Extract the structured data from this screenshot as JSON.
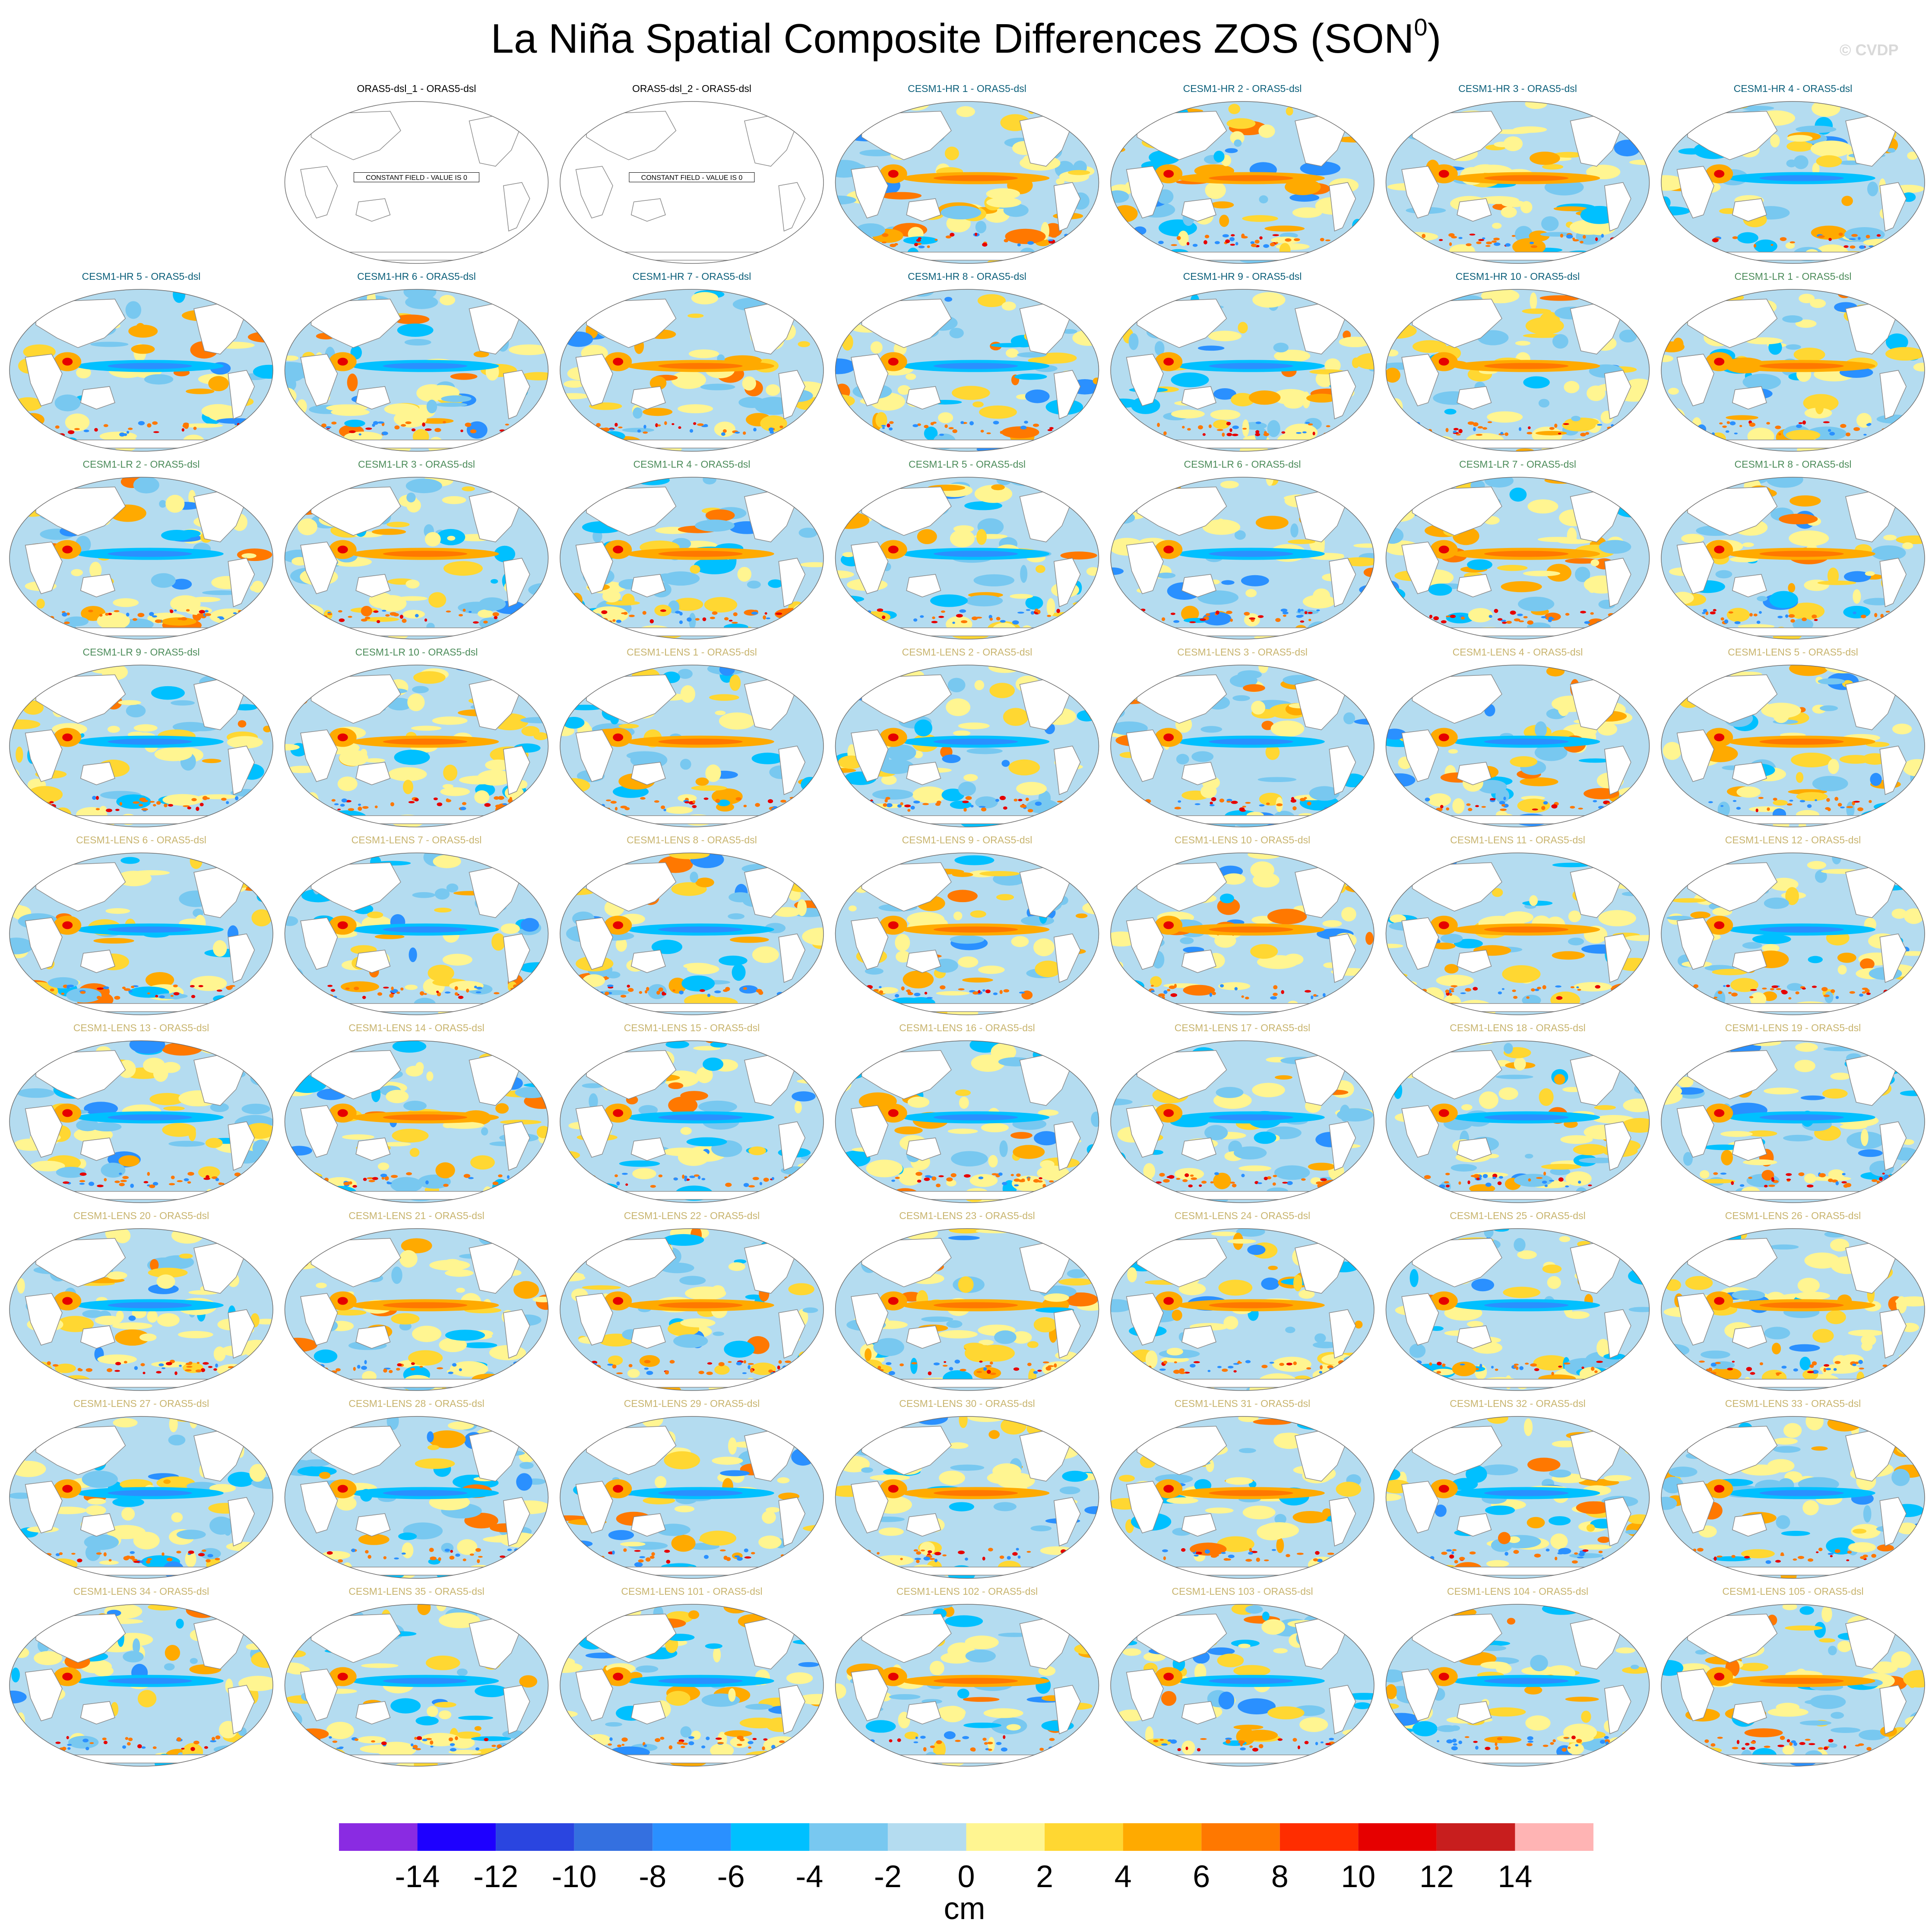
{
  "title": {
    "main": "La Niña Spatial Composite Differences ZOS (SON",
    "superscript": "0",
    "close": ")"
  },
  "watermark": "© CVDP",
  "chart_data": {
    "type": "heatmap",
    "variable": "ZOS",
    "season": "SON",
    "units": "cm",
    "colorbar": {
      "levels": [
        -14,
        -12,
        -10,
        -8,
        -6,
        -4,
        -2,
        0,
        2,
        4,
        6,
        8,
        10,
        12,
        14
      ],
      "tick_labels": [
        "-14",
        "-12",
        "-10",
        "-8",
        "-6",
        "-4",
        "-2",
        "0",
        "2",
        "4",
        "6",
        "8",
        "10",
        "12",
        "14"
      ],
      "colors": [
        "#8a2be2",
        "#1e00ff",
        "#2a45e0",
        "#3470e0",
        "#2a90ff",
        "#00c0ff",
        "#78c8f0",
        "#b4dcf0",
        "#fff591",
        "#ffd732",
        "#ffaa00",
        "#ff7800",
        "#ff2d00",
        "#e60000",
        "#c81e1e",
        "#ffb4b4"
      ],
      "units_label": "cm"
    },
    "panel_groups": [
      {
        "group": "ORAS5-dsl",
        "title_color": "#000000"
      },
      {
        "group": "CESM1-HR",
        "title_color": "#0b5f7a"
      },
      {
        "group": "CESM1-LR",
        "title_color": "#4c8c5a"
      },
      {
        "group": "CESM1-LENS",
        "title_color": "#c8b46e"
      }
    ],
    "panels": [
      {
        "title": "",
        "empty": true
      },
      {
        "title": "ORAS5-dsl_1 - ORAS5-dsl",
        "group": "ORAS5-dsl",
        "constant_note": "CONSTANT FIELD - VALUE IS 0"
      },
      {
        "title": "ORAS5-dsl_2 - ORAS5-dsl",
        "group": "ORAS5-dsl",
        "constant_note": "CONSTANT FIELD - VALUE IS 0"
      },
      {
        "title": "CESM1-HR 1 - ORAS5-dsl",
        "group": "CESM1-HR"
      },
      {
        "title": "CESM1-HR 2 - ORAS5-dsl",
        "group": "CESM1-HR"
      },
      {
        "title": "CESM1-HR 3 - ORAS5-dsl",
        "group": "CESM1-HR"
      },
      {
        "title": "CESM1-HR 4 - ORAS5-dsl",
        "group": "CESM1-HR"
      },
      {
        "title": "CESM1-HR 5 - ORAS5-dsl",
        "group": "CESM1-HR"
      },
      {
        "title": "CESM1-HR 6 - ORAS5-dsl",
        "group": "CESM1-HR"
      },
      {
        "title": "CESM1-HR 7 - ORAS5-dsl",
        "group": "CESM1-HR"
      },
      {
        "title": "CESM1-HR 8 - ORAS5-dsl",
        "group": "CESM1-HR"
      },
      {
        "title": "CESM1-HR 9 - ORAS5-dsl",
        "group": "CESM1-HR"
      },
      {
        "title": "CESM1-HR 10 - ORAS5-dsl",
        "group": "CESM1-HR"
      },
      {
        "title": "CESM1-LR 1 - ORAS5-dsl",
        "group": "CESM1-LR"
      },
      {
        "title": "CESM1-LR 2 - ORAS5-dsl",
        "group": "CESM1-LR"
      },
      {
        "title": "CESM1-LR 3 - ORAS5-dsl",
        "group": "CESM1-LR"
      },
      {
        "title": "CESM1-LR 4 - ORAS5-dsl",
        "group": "CESM1-LR"
      },
      {
        "title": "CESM1-LR 5 - ORAS5-dsl",
        "group": "CESM1-LR"
      },
      {
        "title": "CESM1-LR 6 - ORAS5-dsl",
        "group": "CESM1-LR"
      },
      {
        "title": "CESM1-LR 7 - ORAS5-dsl",
        "group": "CESM1-LR"
      },
      {
        "title": "CESM1-LR 8 - ORAS5-dsl",
        "group": "CESM1-LR"
      },
      {
        "title": "CESM1-LR 9 - ORAS5-dsl",
        "group": "CESM1-LR"
      },
      {
        "title": "CESM1-LR 10 - ORAS5-dsl",
        "group": "CESM1-LR"
      },
      {
        "title": "CESM1-LENS 1 - ORAS5-dsl",
        "group": "CESM1-LENS"
      },
      {
        "title": "CESM1-LENS 2 - ORAS5-dsl",
        "group": "CESM1-LENS"
      },
      {
        "title": "CESM1-LENS 3 - ORAS5-dsl",
        "group": "CESM1-LENS"
      },
      {
        "title": "CESM1-LENS 4 - ORAS5-dsl",
        "group": "CESM1-LENS"
      },
      {
        "title": "CESM1-LENS 5 - ORAS5-dsl",
        "group": "CESM1-LENS"
      },
      {
        "title": "CESM1-LENS 6 - ORAS5-dsl",
        "group": "CESM1-LENS"
      },
      {
        "title": "CESM1-LENS 7 - ORAS5-dsl",
        "group": "CESM1-LENS"
      },
      {
        "title": "CESM1-LENS 8 - ORAS5-dsl",
        "group": "CESM1-LENS"
      },
      {
        "title": "CESM1-LENS 9 - ORAS5-dsl",
        "group": "CESM1-LENS"
      },
      {
        "title": "CESM1-LENS 10 - ORAS5-dsl",
        "group": "CESM1-LENS"
      },
      {
        "title": "CESM1-LENS 11 - ORAS5-dsl",
        "group": "CESM1-LENS"
      },
      {
        "title": "CESM1-LENS 12 - ORAS5-dsl",
        "group": "CESM1-LENS"
      },
      {
        "title": "CESM1-LENS 13 - ORAS5-dsl",
        "group": "CESM1-LENS"
      },
      {
        "title": "CESM1-LENS 14 - ORAS5-dsl",
        "group": "CESM1-LENS"
      },
      {
        "title": "CESM1-LENS 15 - ORAS5-dsl",
        "group": "CESM1-LENS"
      },
      {
        "title": "CESM1-LENS 16 - ORAS5-dsl",
        "group": "CESM1-LENS"
      },
      {
        "title": "CESM1-LENS 17 - ORAS5-dsl",
        "group": "CESM1-LENS"
      },
      {
        "title": "CESM1-LENS 18 - ORAS5-dsl",
        "group": "CESM1-LENS"
      },
      {
        "title": "CESM1-LENS 19 - ORAS5-dsl",
        "group": "CESM1-LENS"
      },
      {
        "title": "CESM1-LENS 20 - ORAS5-dsl",
        "group": "CESM1-LENS"
      },
      {
        "title": "CESM1-LENS 21 - ORAS5-dsl",
        "group": "CESM1-LENS"
      },
      {
        "title": "CESM1-LENS 22 - ORAS5-dsl",
        "group": "CESM1-LENS"
      },
      {
        "title": "CESM1-LENS 23 - ORAS5-dsl",
        "group": "CESM1-LENS"
      },
      {
        "title": "CESM1-LENS 24 - ORAS5-dsl",
        "group": "CESM1-LENS"
      },
      {
        "title": "CESM1-LENS 25 - ORAS5-dsl",
        "group": "CESM1-LENS"
      },
      {
        "title": "CESM1-LENS 26 - ORAS5-dsl",
        "group": "CESM1-LENS"
      },
      {
        "title": "CESM1-LENS 27 - ORAS5-dsl",
        "group": "CESM1-LENS"
      },
      {
        "title": "CESM1-LENS 28 - ORAS5-dsl",
        "group": "CESM1-LENS"
      },
      {
        "title": "CESM1-LENS 29 - ORAS5-dsl",
        "group": "CESM1-LENS"
      },
      {
        "title": "CESM1-LENS 30 - ORAS5-dsl",
        "group": "CESM1-LENS"
      },
      {
        "title": "CESM1-LENS 31 - ORAS5-dsl",
        "group": "CESM1-LENS"
      },
      {
        "title": "CESM1-LENS 32 - ORAS5-dsl",
        "group": "CESM1-LENS"
      },
      {
        "title": "CESM1-LENS 33 - ORAS5-dsl",
        "group": "CESM1-LENS"
      },
      {
        "title": "CESM1-LENS 34 - ORAS5-dsl",
        "group": "CESM1-LENS"
      },
      {
        "title": "CESM1-LENS 35 - ORAS5-dsl",
        "group": "CESM1-LENS"
      },
      {
        "title": "CESM1-LENS 101 - ORAS5-dsl",
        "group": "CESM1-LENS"
      },
      {
        "title": "CESM1-LENS 102 - ORAS5-dsl",
        "group": "CESM1-LENS"
      },
      {
        "title": "CESM1-LENS 103 - ORAS5-dsl",
        "group": "CESM1-LENS"
      },
      {
        "title": "CESM1-LENS 104 - ORAS5-dsl",
        "group": "CESM1-LENS"
      },
      {
        "title": "CESM1-LENS 105 - ORAS5-dsl",
        "group": "CESM1-LENS"
      }
    ]
  }
}
